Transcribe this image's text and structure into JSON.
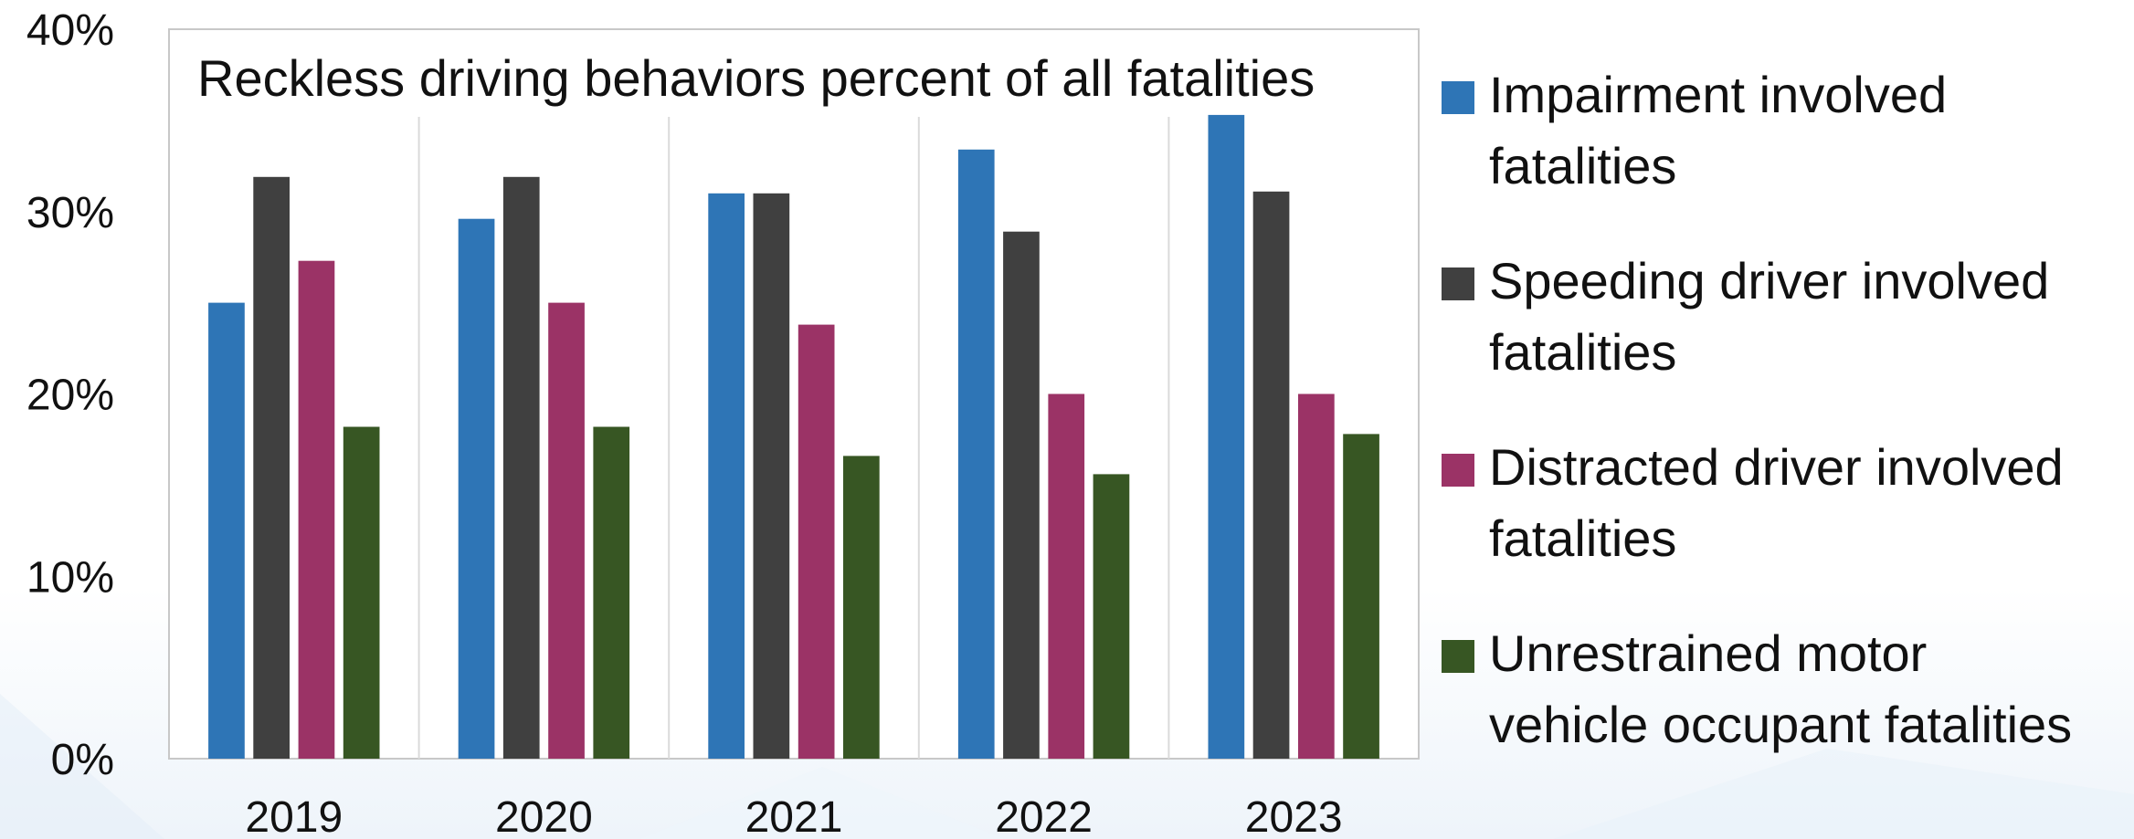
{
  "chart_data": {
    "type": "bar",
    "title": "Reckless driving behaviors percent of all fatalities",
    "categories": [
      "2019",
      "2020",
      "2021",
      "2022",
      "2023"
    ],
    "ylim": [
      0,
      40
    ],
    "yticks": [
      "0%",
      "10%",
      "20%",
      "30%",
      "40%"
    ],
    "ytick_values": [
      0,
      10,
      20,
      30,
      40
    ],
    "grid": "vertical category separators",
    "legend_position": "right",
    "series": [
      {
        "name": "Impairment involved fatalities",
        "legend_lines": [
          "Impairment involved",
          "fatalities"
        ],
        "color": "#2E75B6",
        "values": [
          25.0,
          29.6,
          31.0,
          33.4,
          35.3
        ]
      },
      {
        "name": "Speeding driver involved fatalities",
        "legend_lines": [
          "Speeding driver involved",
          "fatalities"
        ],
        "color": "#404040",
        "values": [
          31.9,
          31.9,
          31.0,
          28.9,
          31.1
        ]
      },
      {
        "name": "Distracted driver involved fatalities",
        "legend_lines": [
          "Distracted driver involved",
          "fatalities"
        ],
        "color": "#9B3366",
        "values": [
          27.3,
          25.0,
          23.8,
          20.0,
          20.0
        ]
      },
      {
        "name": "Unrestrained motor vehicle occupant fatalities",
        "legend_lines": [
          "Unrestrained motor",
          "vehicle occupant fatalities"
        ],
        "color": "#375623",
        "values": [
          18.2,
          18.2,
          16.6,
          15.6,
          17.8
        ]
      }
    ]
  }
}
